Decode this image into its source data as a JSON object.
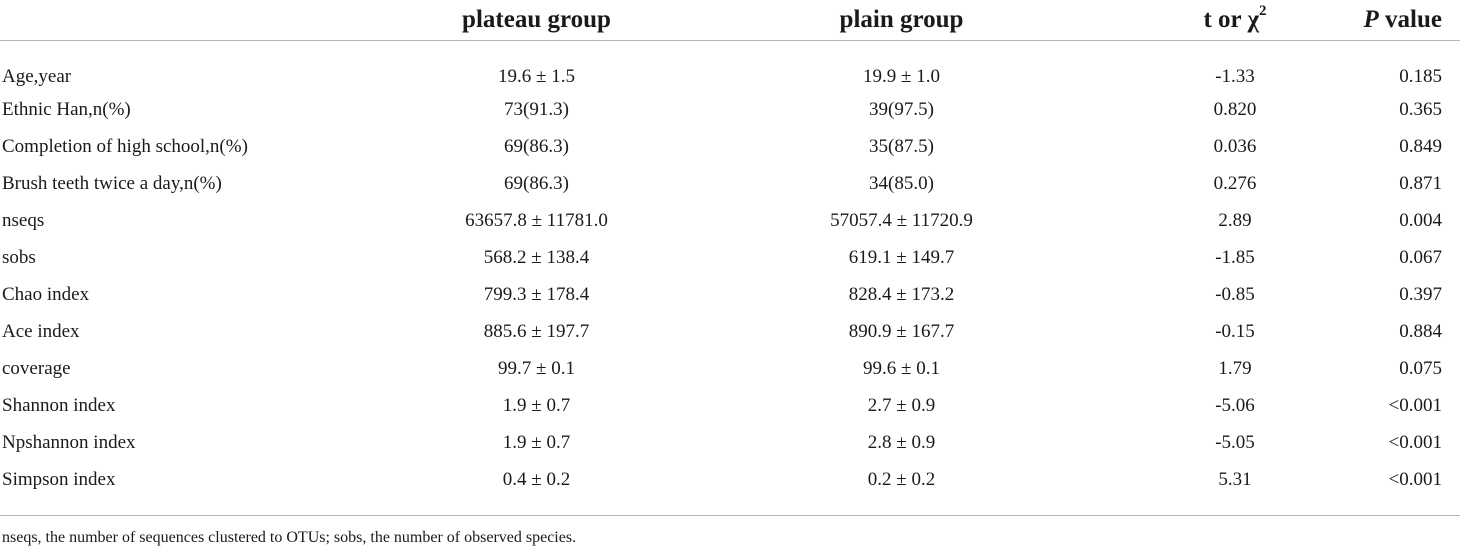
{
  "table": {
    "header": {
      "label": "",
      "plateau": "plateau group",
      "plain": "plain group",
      "stat_prefix": "t or χ",
      "stat_sup": "2",
      "p_italic": "P",
      "p_suffix": " value"
    },
    "rows": [
      {
        "label": "Age,year",
        "plateau": "19.6 ± 1.5",
        "plain": "19.9 ± 1.0",
        "stat": "-1.33",
        "p": "0.185"
      },
      {
        "label": "Ethnic Han,n(%)",
        "plateau": "73(91.3)",
        "plain": "39(97.5)",
        "stat": "0.820",
        "p": "0.365"
      },
      {
        "label": "Completion of high school,n(%)",
        "plateau": "69(86.3)",
        "plain": "35(87.5)",
        "stat": "0.036",
        "p": "0.849"
      },
      {
        "label": "Brush teeth twice a day,n(%)",
        "plateau": "69(86.3)",
        "plain": "34(85.0)",
        "stat": "0.276",
        "p": "0.871"
      },
      {
        "label": "nseqs",
        "plateau": "63657.8 ± 11781.0",
        "plain": "57057.4 ± 11720.9",
        "stat": "2.89",
        "p": "0.004"
      },
      {
        "label": "sobs",
        "plateau": "568.2 ± 138.4",
        "plain": "619.1 ± 149.7",
        "stat": "-1.85",
        "p": "0.067"
      },
      {
        "label": "Chao index",
        "plateau": "799.3 ± 178.4",
        "plain": "828.4 ± 173.2",
        "stat": "-0.85",
        "p": "0.397"
      },
      {
        "label": "Ace index",
        "plateau": "885.6 ± 197.7",
        "plain": "890.9 ± 167.7",
        "stat": "-0.15",
        "p": "0.884"
      },
      {
        "label": "coverage",
        "plateau": "99.7 ± 0.1",
        "plain": "99.6 ± 0.1",
        "stat": "1.79",
        "p": "0.075"
      },
      {
        "label": "Shannon index",
        "plateau": "1.9 ± 0.7",
        "plain": "2.7 ± 0.9",
        "stat": "-5.06",
        "p": "<0.001"
      },
      {
        "label": "Npshannon index",
        "plateau": "1.9 ± 0.7",
        "plain": "2.8 ± 0.9",
        "stat": "-5.05",
        "p": "<0.001"
      },
      {
        "label": "Simpson index",
        "plateau": "0.4 ± 0.2",
        "plain": "0.2 ± 0.2",
        "stat": "5.31",
        "p": "<0.001"
      }
    ]
  },
  "footnote": "nseqs, the number of sequences clustered to OTUs; sobs, the number of observed species."
}
